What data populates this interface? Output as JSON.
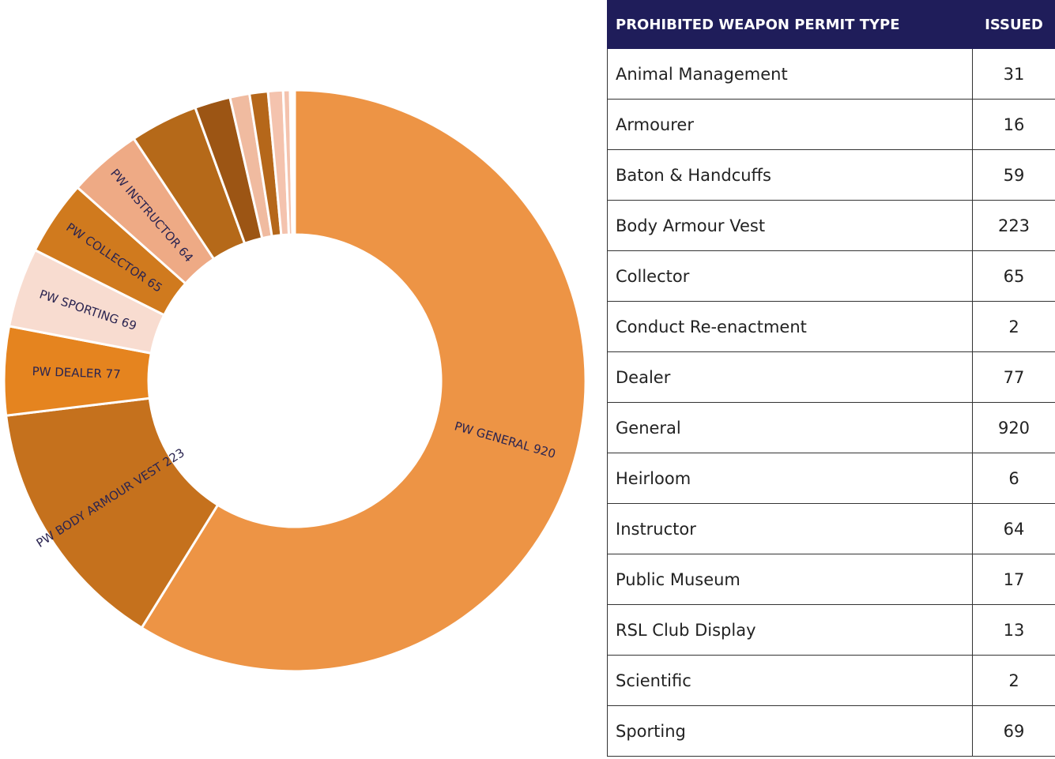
{
  "chart_data": {
    "type": "donut",
    "categories": [
      "PW GENERAL 920",
      "PW BODY ARMOUR VEST 223",
      "PW DEALER 77",
      "PW SPORTING 69",
      "PW COLLECTOR 65",
      "PW INSTRUCTOR 64",
      null,
      null,
      null,
      null,
      null,
      null,
      null,
      null
    ],
    "values": [
      920,
      223,
      77,
      69,
      65,
      64,
      59,
      31,
      17,
      16,
      13,
      6,
      2,
      2
    ],
    "colors": [
      "#ed9445",
      "#c5711d",
      "#e5841f",
      "#f8dcd0",
      "#d07a1e",
      "#eeaa85",
      "#b56919",
      "#9c5514",
      "#f0bba0",
      "#b5671a",
      "#f4c3ae",
      "#f4c3ae",
      "#f8d4c4",
      "#f8d4c4"
    ]
  },
  "table": {
    "headers": [
      "PROHIBITED WEAPON PERMIT TYPE",
      "ISSUED"
    ],
    "rows": [
      [
        "Animal Management",
        "31"
      ],
      [
        "Armourer",
        "16"
      ],
      [
        "Baton & Handcuffs",
        "59"
      ],
      [
        "Body Armour Vest",
        "223"
      ],
      [
        "Collector",
        "65"
      ],
      [
        "Conduct Re-enactment",
        "2"
      ],
      [
        "Dealer",
        "77"
      ],
      [
        "General",
        "920"
      ],
      [
        "Heirloom",
        "6"
      ],
      [
        "Instructor",
        "64"
      ],
      [
        "Public Museum",
        "17"
      ],
      [
        "RSL Club Display",
        "13"
      ],
      [
        "Scientific",
        "2"
      ],
      [
        "Sporting",
        "69"
      ]
    ]
  }
}
